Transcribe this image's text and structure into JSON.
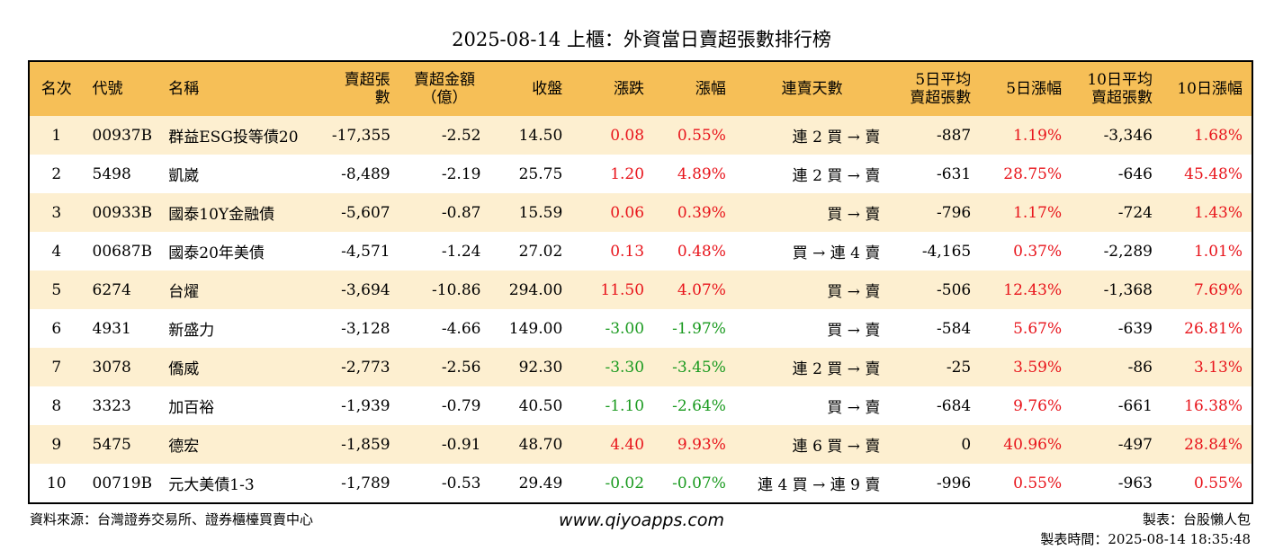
{
  "title": "2025-08-14 上櫃：外資當日賣超張數排行榜",
  "columns": [
    "名次",
    "代號",
    "名稱",
    "賣超張數",
    "賣超金額\n（億）",
    "收盤",
    "漲跌",
    "漲幅",
    "連賣天數",
    "5日平均\n賣超張數",
    "5日漲幅",
    "10日平均\n賣超張數",
    "10日漲幅"
  ],
  "rows": [
    [
      "1",
      "00937B",
      "群益ESG投等債20",
      "-17,355",
      "-2.52",
      "14.50",
      "0.08",
      "0.55%",
      "連 2 買 → 賣",
      "-887",
      "1.19%",
      "-3,346",
      "1.68%"
    ],
    [
      "2",
      "5498",
      "凱崴",
      "-8,489",
      "-2.19",
      "25.75",
      "1.20",
      "4.89%",
      "連 2 買 → 賣",
      "-631",
      "28.75%",
      "-646",
      "45.48%"
    ],
    [
      "3",
      "00933B",
      "國泰10Y金融債",
      "-5,607",
      "-0.87",
      "15.59",
      "0.06",
      "0.39%",
      "買 → 賣",
      "-796",
      "1.17%",
      "-724",
      "1.43%"
    ],
    [
      "4",
      "00687B",
      "國泰20年美債",
      "-4,571",
      "-1.24",
      "27.02",
      "0.13",
      "0.48%",
      "買 → 連 4 賣",
      "-4,165",
      "0.37%",
      "-2,289",
      "1.01%"
    ],
    [
      "5",
      "6274",
      "台燿",
      "-3,694",
      "-10.86",
      "294.00",
      "11.50",
      "4.07%",
      "買 → 賣",
      "-506",
      "12.43%",
      "-1,368",
      "7.69%"
    ],
    [
      "6",
      "4931",
      "新盛力",
      "-3,128",
      "-4.66",
      "149.00",
      "-3.00",
      "-1.97%",
      "買 → 賣",
      "-584",
      "5.67%",
      "-639",
      "26.81%"
    ],
    [
      "7",
      "3078",
      "僑威",
      "-2,773",
      "-2.56",
      "92.30",
      "-3.30",
      "-3.45%",
      "連 2 買 → 賣",
      "-25",
      "3.59%",
      "-86",
      "3.13%"
    ],
    [
      "8",
      "3323",
      "加百裕",
      "-1,939",
      "-0.79",
      "40.50",
      "-1.10",
      "-2.64%",
      "買 → 賣",
      "-684",
      "9.76%",
      "-661",
      "16.38%"
    ],
    [
      "9",
      "5475",
      "德宏",
      "-1,859",
      "-0.91",
      "48.70",
      "4.40",
      "9.93%",
      "連 6 買 → 賣",
      "0",
      "40.96%",
      "-497",
      "28.84%"
    ],
    [
      "10",
      "00719B",
      "元大美債1-3",
      "-1,789",
      "-0.53",
      "29.49",
      "-0.02",
      "-0.07%",
      "連 4 買 → 連 9 賣",
      "-996",
      "0.55%",
      "-963",
      "0.55%"
    ]
  ],
  "footer": {
    "source": "資料來源：台灣證券交易所、證券櫃檯買賣中心",
    "website": "www.qiyoapps.com",
    "maker": "製表：台股懶人包",
    "time": "製表時間：2025-08-14 18:35:48"
  },
  "colors": {
    "header_bg": "#f6bf57",
    "row_alt_bg": "#fdefd0",
    "up": "#e8141b",
    "down": "#1a9a1f"
  }
}
